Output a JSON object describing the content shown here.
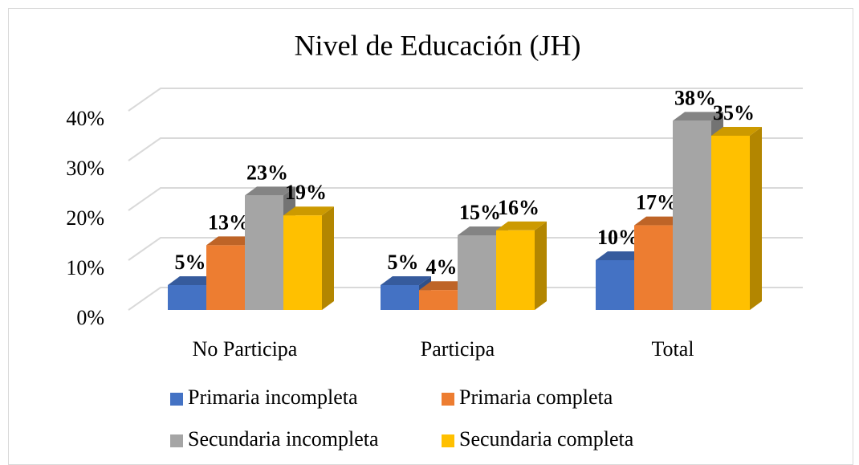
{
  "chart_data": {
    "type": "bar3d",
    "title": "Nivel de Educación (JH)",
    "categories": [
      "No Participa",
      "Participa",
      "Total"
    ],
    "series": [
      {
        "name": "Primaria incompleta",
        "color": "#4472c4",
        "values": [
          5,
          5,
          10
        ],
        "value_labels": [
          "5%",
          "5%",
          "10%"
        ]
      },
      {
        "name": "Primaria completa",
        "color": "#ed7d31",
        "values": [
          13,
          4,
          17
        ],
        "value_labels": [
          "13%",
          "4%",
          "17%"
        ]
      },
      {
        "name": "Secundaria incompleta",
        "color": "#a5a5a5",
        "values": [
          23,
          15,
          38
        ],
        "value_labels": [
          "23%",
          "15%",
          "38%"
        ]
      },
      {
        "name": "Secundaria completa",
        "color": "#ffc000",
        "values": [
          19,
          16,
          35
        ],
        "value_labels": [
          "19%",
          "16%",
          "35%"
        ]
      }
    ],
    "ylim": [
      0,
      40
    ],
    "yticks": [
      {
        "value": 0,
        "label": "0%"
      },
      {
        "value": 10,
        "label": "10%"
      },
      {
        "value": 20,
        "label": "20%"
      },
      {
        "value": 30,
        "label": "30%"
      },
      {
        "value": 40,
        "label": "40%"
      }
    ],
    "grid": true
  }
}
